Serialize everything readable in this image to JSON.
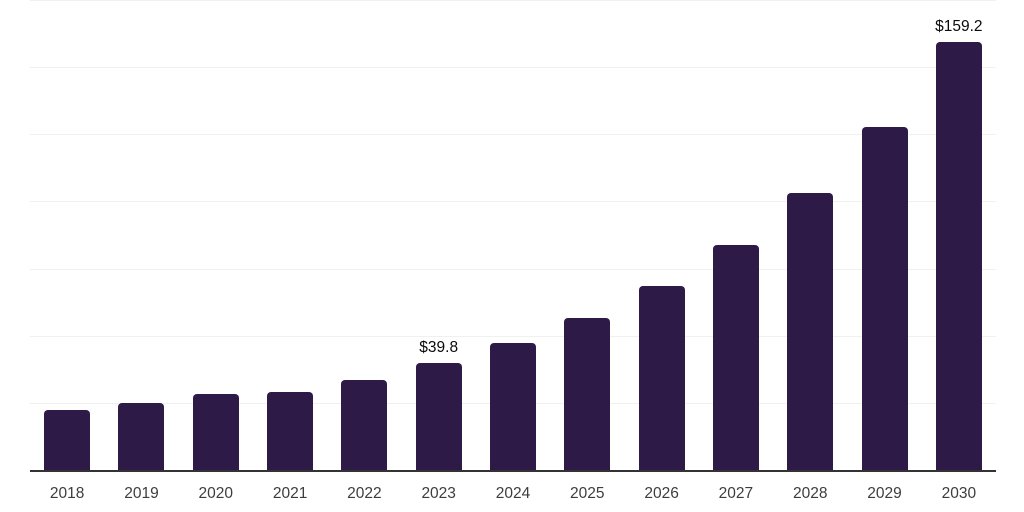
{
  "chart_data": {
    "type": "bar",
    "categories": [
      "2018",
      "2019",
      "2020",
      "2021",
      "2022",
      "2023",
      "2024",
      "2025",
      "2026",
      "2027",
      "2028",
      "2029",
      "2030"
    ],
    "values": [
      22.2,
      25.1,
      28.3,
      28.9,
      33.4,
      39.8,
      47.4,
      56.7,
      68.6,
      83.8,
      103.1,
      127.6,
      159.2
    ],
    "data_labels": [
      "",
      "",
      "",
      "",
      "",
      "$39.8",
      "",
      "",
      "",
      "",
      "",
      "",
      "$159.2"
    ],
    "title": "",
    "xlabel": "",
    "ylabel": "",
    "ylim": [
      0,
      175
    ],
    "grid_step": 25,
    "grid": "horizontal-only",
    "legend_position": "none",
    "colors": {
      "bar": "#2e1a47",
      "axis_line": "#333333",
      "gridline": "#f0f0f0",
      "value_label": "#0a0a0a",
      "tick_label": "#3d3d3d",
      "background": "#ffffff"
    }
  }
}
